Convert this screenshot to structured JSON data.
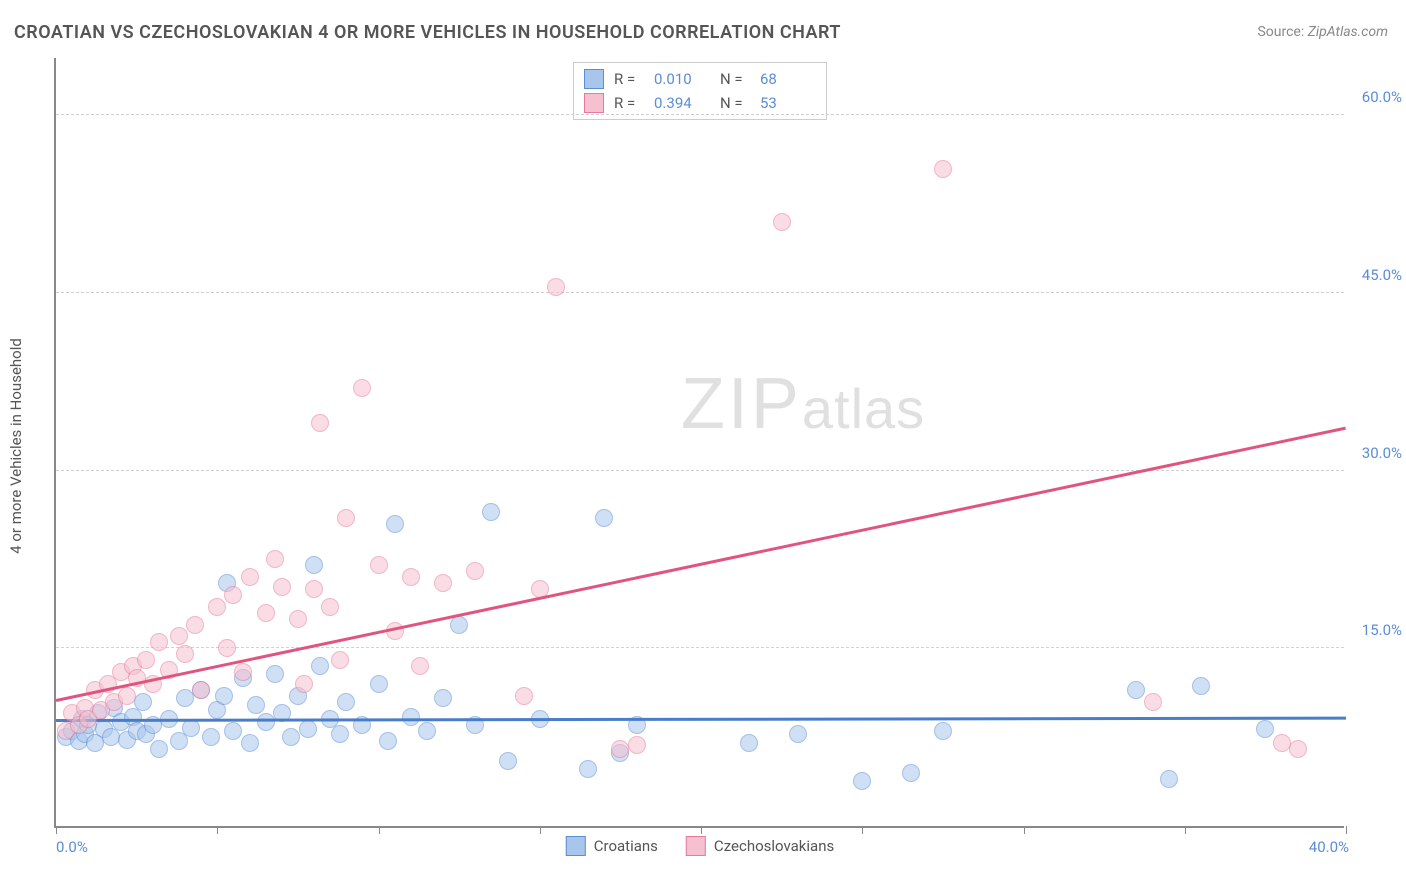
{
  "title": "CROATIAN VS CZECHOSLOVAKIAN 4 OR MORE VEHICLES IN HOUSEHOLD CORRELATION CHART",
  "source_label": "Source:",
  "source_value": "ZipAtlas.com",
  "y_axis_title": "4 or more Vehicles in Household",
  "watermark": {
    "zip": "ZIP",
    "atlas": "atlas"
  },
  "chart": {
    "type": "scatter",
    "xlim": [
      0,
      40
    ],
    "ylim": [
      0,
      65
    ],
    "x_tick_step": 5,
    "x_label_min": "0.0%",
    "x_label_max": "40.0%",
    "y_gridlines": [
      15,
      30,
      45,
      60
    ],
    "y_labels": [
      "15.0%",
      "30.0%",
      "45.0%",
      "60.0%"
    ],
    "background_color": "#ffffff",
    "grid_color": "#d0d0d0",
    "axis_color": "#888888",
    "tick_label_color": "#5b8dd6",
    "marker_radius": 9,
    "marker_opacity": 0.55,
    "series": [
      {
        "name": "Croatians",
        "fill": "#a8c6ec",
        "stroke": "#5b8dd6",
        "r_value": "0.010",
        "n_value": "68",
        "trend": {
          "x1": 0,
          "y1": 8.8,
          "x2": 40,
          "y2": 9.0,
          "color": "#4a7dc9",
          "width": 2.5
        },
        "points": [
          [
            0.3,
            7.5
          ],
          [
            0.5,
            8.0
          ],
          [
            0.7,
            7.2
          ],
          [
            0.8,
            9.0
          ],
          [
            0.9,
            7.8
          ],
          [
            1.0,
            8.5
          ],
          [
            1.2,
            7.0
          ],
          [
            1.3,
            9.5
          ],
          [
            1.5,
            8.2
          ],
          [
            1.7,
            7.5
          ],
          [
            1.8,
            10.0
          ],
          [
            2.0,
            8.8
          ],
          [
            2.2,
            7.3
          ],
          [
            2.4,
            9.2
          ],
          [
            2.5,
            8.0
          ],
          [
            2.7,
            10.5
          ],
          [
            2.8,
            7.8
          ],
          [
            3.0,
            8.5
          ],
          [
            3.2,
            6.5
          ],
          [
            3.5,
            9.0
          ],
          [
            3.8,
            7.2
          ],
          [
            4.0,
            10.8
          ],
          [
            4.2,
            8.3
          ],
          [
            4.5,
            11.5
          ],
          [
            4.8,
            7.5
          ],
          [
            5.0,
            9.8
          ],
          [
            5.2,
            11.0
          ],
          [
            5.3,
            20.5
          ],
          [
            5.5,
            8.0
          ],
          [
            5.8,
            12.5
          ],
          [
            6.0,
            7.0
          ],
          [
            6.2,
            10.2
          ],
          [
            6.5,
            8.8
          ],
          [
            6.8,
            12.8
          ],
          [
            7.0,
            9.5
          ],
          [
            7.3,
            7.5
          ],
          [
            7.5,
            11.0
          ],
          [
            7.8,
            8.2
          ],
          [
            8.0,
            22.0
          ],
          [
            8.2,
            13.5
          ],
          [
            8.5,
            9.0
          ],
          [
            8.8,
            7.8
          ],
          [
            9.0,
            10.5
          ],
          [
            9.5,
            8.5
          ],
          [
            10.0,
            12.0
          ],
          [
            10.3,
            7.2
          ],
          [
            10.5,
            25.5
          ],
          [
            11.0,
            9.2
          ],
          [
            11.5,
            8.0
          ],
          [
            12.0,
            10.8
          ],
          [
            12.5,
            17.0
          ],
          [
            13.0,
            8.5
          ],
          [
            13.5,
            26.5
          ],
          [
            14.0,
            5.5
          ],
          [
            15.0,
            9.0
          ],
          [
            16.5,
            4.8
          ],
          [
            17.0,
            26.0
          ],
          [
            17.5,
            6.2
          ],
          [
            18.0,
            8.5
          ],
          [
            21.5,
            7.0
          ],
          [
            23.0,
            7.8
          ],
          [
            25.0,
            3.8
          ],
          [
            26.5,
            4.5
          ],
          [
            27.5,
            8.0
          ],
          [
            33.5,
            11.5
          ],
          [
            34.5,
            4.0
          ],
          [
            35.5,
            11.8
          ],
          [
            37.5,
            8.2
          ]
        ]
      },
      {
        "name": "Czechoslovakians",
        "fill": "#f5c0cf",
        "stroke": "#e77a9a",
        "r_value": "0.394",
        "n_value": "53",
        "trend": {
          "x1": 0,
          "y1": 10.5,
          "x2": 40,
          "y2": 33.5,
          "color": "#e05580",
          "width": 2.5
        },
        "points": [
          [
            0.3,
            8.0
          ],
          [
            0.5,
            9.5
          ],
          [
            0.7,
            8.5
          ],
          [
            0.9,
            10.0
          ],
          [
            1.0,
            9.0
          ],
          [
            1.2,
            11.5
          ],
          [
            1.4,
            9.8
          ],
          [
            1.6,
            12.0
          ],
          [
            1.8,
            10.5
          ],
          [
            2.0,
            13.0
          ],
          [
            2.2,
            11.0
          ],
          [
            2.4,
            13.5
          ],
          [
            2.5,
            12.5
          ],
          [
            2.8,
            14.0
          ],
          [
            3.0,
            12.0
          ],
          [
            3.2,
            15.5
          ],
          [
            3.5,
            13.2
          ],
          [
            3.8,
            16.0
          ],
          [
            4.0,
            14.5
          ],
          [
            4.3,
            17.0
          ],
          [
            4.5,
            11.5
          ],
          [
            5.0,
            18.5
          ],
          [
            5.3,
            15.0
          ],
          [
            5.5,
            19.5
          ],
          [
            5.8,
            13.0
          ],
          [
            6.0,
            21.0
          ],
          [
            6.5,
            18.0
          ],
          [
            6.8,
            22.5
          ],
          [
            7.0,
            20.2
          ],
          [
            7.5,
            17.5
          ],
          [
            7.7,
            12.0
          ],
          [
            8.0,
            20.0
          ],
          [
            8.2,
            34.0
          ],
          [
            8.5,
            18.5
          ],
          [
            8.8,
            14.0
          ],
          [
            9.0,
            26.0
          ],
          [
            9.5,
            37.0
          ],
          [
            10.0,
            22.0
          ],
          [
            10.5,
            16.5
          ],
          [
            11.0,
            21.0
          ],
          [
            11.3,
            13.5
          ],
          [
            12.0,
            20.5
          ],
          [
            13.0,
            21.5
          ],
          [
            14.5,
            11.0
          ],
          [
            15.0,
            20.0
          ],
          [
            15.5,
            45.5
          ],
          [
            17.5,
            6.5
          ],
          [
            18.0,
            6.8
          ],
          [
            22.5,
            51.0
          ],
          [
            27.5,
            55.5
          ],
          [
            34.0,
            10.5
          ],
          [
            38.0,
            7.0
          ],
          [
            38.5,
            6.5
          ]
        ]
      }
    ]
  },
  "legend_top": {
    "r_label": "R =",
    "n_label": "N ="
  },
  "legend_bottom": {
    "items": [
      "Croatians",
      "Czechoslovakians"
    ]
  }
}
